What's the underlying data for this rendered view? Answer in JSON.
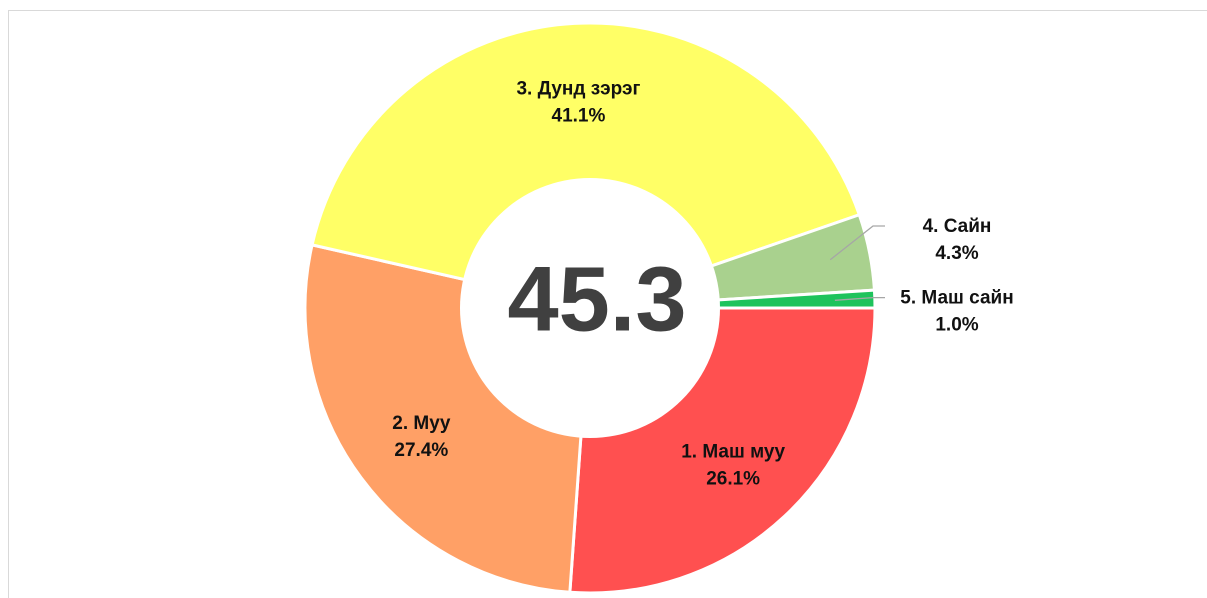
{
  "chart_data": {
    "type": "donut",
    "center_text": "45.3",
    "categories": [
      "1. Маш муу",
      "2. Муу",
      "3. Дунд зэрэг",
      "4. Сайн",
      "5. Маш сайн"
    ],
    "values": [
      26.1,
      27.4,
      41.1,
      4.3,
      1.0
    ],
    "value_labels": [
      "26.1%",
      "27.4%",
      "41.1%",
      "4.3%",
      "1.0%"
    ],
    "colors": [
      "#ff5050",
      "#ffa066",
      "#ffff66",
      "#a9d18e",
      "#1ec35c"
    ]
  }
}
